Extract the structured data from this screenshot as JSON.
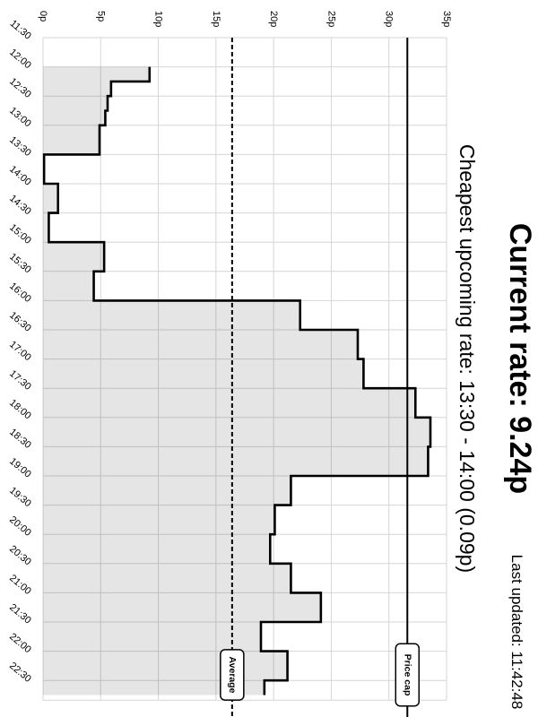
{
  "header": {
    "title": "Current rate: 9.24p",
    "subtitle": "Cheapest upcoming rate: 13:30 - 14:00 (0.09p)",
    "last_updated": "Last updated: 11:42:48"
  },
  "chart_data": {
    "type": "line",
    "orientation": "rotated-90-clockwise",
    "step": true,
    "fill_area": true,
    "grid": true,
    "x_ticks": [
      "11:30",
      "12:00",
      "12:30",
      "13:00",
      "13:30",
      "14:00",
      "14:30",
      "15:00",
      "15:30",
      "16:00",
      "16:30",
      "17:00",
      "17:30",
      "18:00",
      "18:30",
      "19:00",
      "19:30",
      "20:00",
      "20:30",
      "21:00",
      "21:30",
      "22:00",
      "22:30"
    ],
    "y_ticks": [
      "0p",
      "5p",
      "10p",
      "15p",
      "20p",
      "25p",
      "30p",
      "35p"
    ],
    "ylim": [
      0,
      35
    ],
    "series": [
      {
        "values": [
          {
            "x": "11:45",
            "y": 9.24
          },
          {
            "x": "12:15",
            "y": 5.9
          },
          {
            "x": "12:30",
            "y": 5.6
          },
          {
            "x": "12:45",
            "y": 5.4
          },
          {
            "x": "13:00",
            "y": 4.9
          },
          {
            "x": "13:30",
            "y": 0.09
          },
          {
            "x": "14:00",
            "y": 1.3
          },
          {
            "x": "14:30",
            "y": 0.5
          },
          {
            "x": "15:00",
            "y": 5.3
          },
          {
            "x": "15:30",
            "y": 4.4
          },
          {
            "x": "16:00",
            "y": 22.3
          },
          {
            "x": "16:30",
            "y": 27.3
          },
          {
            "x": "17:00",
            "y": 27.8
          },
          {
            "x": "17:30",
            "y": 32.3
          },
          {
            "x": "18:00",
            "y": 33.6
          },
          {
            "x": "18:30",
            "y": 33.4
          },
          {
            "x": "19:00",
            "y": 21.5
          },
          {
            "x": "19:30",
            "y": 20.1
          },
          {
            "x": "20:00",
            "y": 19.7
          },
          {
            "x": "20:30",
            "y": 21.5
          },
          {
            "x": "21:00",
            "y": 24.1
          },
          {
            "x": "21:30",
            "y": 18.9
          },
          {
            "x": "22:00",
            "y": 21.2
          },
          {
            "x": "22:30",
            "y": 19.2
          }
        ]
      }
    ],
    "reference_lines": [
      {
        "label": "Average",
        "value": 16.4,
        "style": "dashed"
      },
      {
        "label": "Price cap",
        "value": 31.6,
        "style": "solid"
      }
    ]
  }
}
